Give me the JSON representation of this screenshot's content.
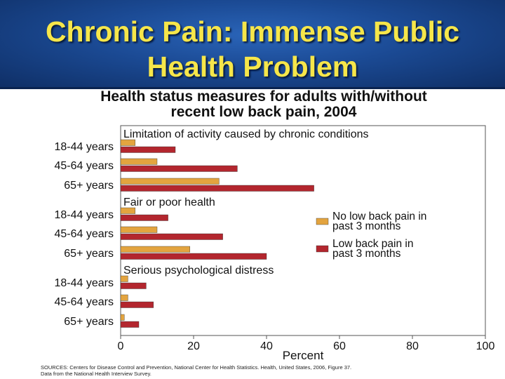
{
  "slide": {
    "title_line1": "Chronic Pain: Immense Public",
    "title_line2": "Health Problem"
  },
  "figure": {
    "heading_line1": "Health status measures for adults with/without",
    "heading_line2": "recent low back pain, 2004",
    "source_line1": "SOURCES: Centers for Disease Control and Prevention, National Center for Health Statistics. Health, United States, 2006, Figure 37.",
    "source_line2": "Data from the National Health Interview Survey."
  },
  "colors": {
    "no_pain": "#e3a43f",
    "pain": "#b3262e",
    "banner": "#1b4a94",
    "title_text": "#f6e64a"
  },
  "chart_data": {
    "type": "bar",
    "orientation": "horizontal",
    "xlabel": "Percent",
    "xlim": [
      0,
      100
    ],
    "xticks": [
      0,
      20,
      40,
      60,
      80,
      100
    ],
    "legend_position": "right",
    "series": [
      {
        "name": "No low back pain in past 3 months",
        "legend_lines": [
          "No low back pain in",
          "past 3 months"
        ],
        "color": "#e3a43f"
      },
      {
        "name": "Low back pain in past 3 months",
        "legend_lines": [
          "Low back pain in",
          "past 3 months"
        ],
        "color": "#b3262e"
      }
    ],
    "groups": [
      {
        "title": "Limitation of activity caused by chronic conditions",
        "categories": [
          "18-44 years",
          "45-64 years",
          "65+ years"
        ],
        "values": [
          [
            4,
            15
          ],
          [
            10,
            32
          ],
          [
            27,
            53
          ]
        ]
      },
      {
        "title": "Fair or poor health",
        "categories": [
          "18-44 years",
          "45-64 years",
          "65+ years"
        ],
        "values": [
          [
            4,
            13
          ],
          [
            10,
            28
          ],
          [
            19,
            40
          ]
        ]
      },
      {
        "title": "Serious psychological distress",
        "categories": [
          "18-44 years",
          "45-64 years",
          "65+ years"
        ],
        "values": [
          [
            2,
            7
          ],
          [
            2,
            9
          ],
          [
            1,
            5
          ]
        ]
      }
    ]
  }
}
